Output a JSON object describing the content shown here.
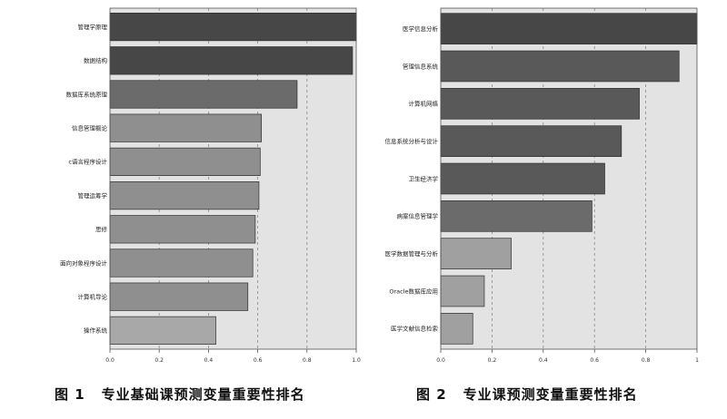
{
  "figures": [
    {
      "caption_num": "图 1",
      "caption_text": "专业基础课预测变量重要性排名",
      "chart_data": {
        "type": "bar",
        "orientation": "horizontal",
        "categories": [
          "管理学原理",
          "数据结构",
          "数据库系统原理",
          "信息管理概论",
          "c语言程序设计",
          "管理运筹学",
          "思修",
          "面向对象程序设计",
          "计算机导论",
          "操作系统"
        ],
        "values": [
          1.0,
          0.985,
          0.76,
          0.615,
          0.61,
          0.605,
          0.59,
          0.58,
          0.56,
          0.43
        ],
        "bar_colors": [
          "#474747",
          "#474747",
          "#6b6b6b",
          "#8f8f8f",
          "#8f8f8f",
          "#8f8f8f",
          "#8f8f8f",
          "#8f8f8f",
          "#8f8f8f",
          "#a8a8a8"
        ],
        "xlim": [
          0,
          1
        ],
        "xticks": [
          "0.0",
          "0.2",
          "0.4",
          "0.6",
          "0.8",
          "1.0"
        ],
        "grid": true
      }
    },
    {
      "caption_num": "图 2",
      "caption_text": "专业课预测变量重要性排名",
      "chart_data": {
        "type": "bar",
        "orientation": "horizontal",
        "categories": [
          "医学信息分析",
          "管理信息系统",
          "计算机网络",
          "信息系统分析与设计",
          "卫生经济学",
          "病案信息管理学",
          "医学数据管理与分析",
          "Oracle数据库应用",
          "医学文献信息检索"
        ],
        "values": [
          1.0,
          0.93,
          0.775,
          0.705,
          0.64,
          0.59,
          0.275,
          0.17,
          0.125
        ],
        "bar_colors": [
          "#474747",
          "#595959",
          "#595959",
          "#595959",
          "#595959",
          "#6b6b6b",
          "#a0a0a0",
          "#a0a0a0",
          "#a0a0a0"
        ],
        "xlim": [
          0,
          1
        ],
        "xticks": [
          "0.0",
          "0.2",
          "0.4",
          "0.6",
          "0.8",
          "1"
        ],
        "grid": true
      }
    }
  ]
}
